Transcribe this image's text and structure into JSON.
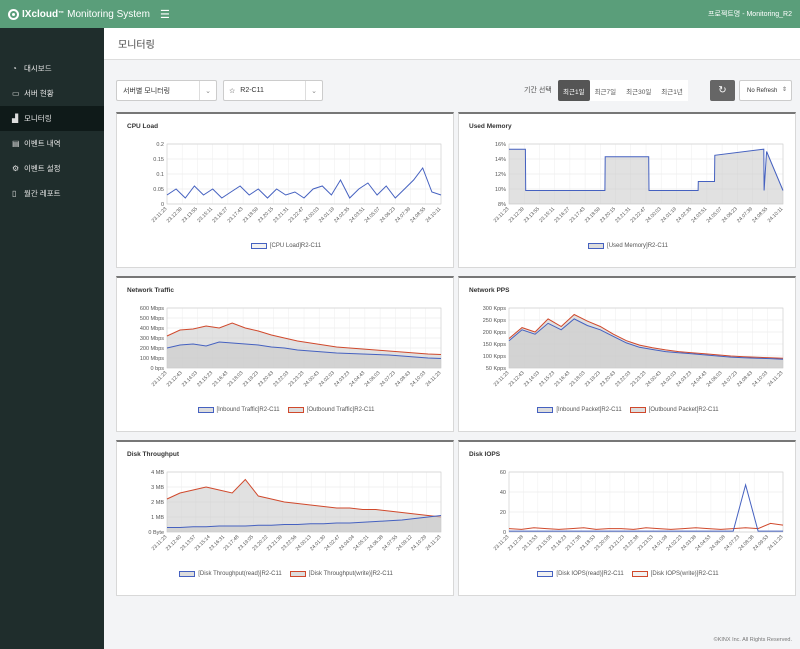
{
  "header": {
    "brand": "IXcloud",
    "trademark": "™",
    "system_name": "Monitoring System",
    "project": "프로젝트명 - Monitoring_R2"
  },
  "sidebar": {
    "items": [
      {
        "label": "대시보드",
        "icon": "gauge-icon"
      },
      {
        "label": "서버 현황",
        "icon": "monitor-icon"
      },
      {
        "label": "모니터링",
        "icon": "bar-chart-icon",
        "active": true
      },
      {
        "label": "이벤트 내역",
        "icon": "list-icon"
      },
      {
        "label": "이벤트 설정",
        "icon": "gear-icon"
      },
      {
        "label": "월간 레포트",
        "icon": "document-icon"
      }
    ]
  },
  "page": {
    "title": "모니터링",
    "view_select": "서버별 모니터링",
    "server_select": "R2-C11",
    "period_label": "기간 선택",
    "periods": [
      "최근1일",
      "최근7일",
      "최근30일",
      "최근1년"
    ],
    "active_period": 0,
    "refresh_select": "No Refresh",
    "footer": "©KINX Inc. All Rights Reserved."
  },
  "colors": {
    "blue": "#4561c0",
    "red": "#d0492c",
    "header": "#5a9e7a",
    "sidebar": "#1f2d2c"
  },
  "chart_data": [
    {
      "type": "line",
      "title": "CPU Load",
      "y_ticks": [
        "0.2",
        "0.15",
        "0.1",
        "0.05",
        "0"
      ],
      "ylim": [
        0,
        0.2
      ],
      "x": [
        "23.11:23",
        "23.12:09",
        "23.12:55",
        "23.13:41",
        "23.14:27",
        "23.15:13",
        "23.15:59",
        "23.16:45",
        "23.17:31",
        "23.18:17",
        "23.19:03",
        "23.19:49",
        "23.20:35",
        "23.21:21",
        "23.22:07",
        "23.22:53",
        "24.00:25",
        "24.01:11",
        "24.01:57",
        "24.02:43",
        "24.03:29",
        "24.04:15",
        "24.05:01",
        "24.05:47",
        "24.06:33",
        "24.07:19",
        "24.08:05",
        "24.08:51",
        "24.09:37",
        "24.10:23",
        "24.11:09"
      ],
      "x_ticks": [
        "23.11:23",
        "23.12:39",
        "23.13:55",
        "23.15:11",
        "23.16:27",
        "23.17:43",
        "23.18:59",
        "23.20:15",
        "23.21:31",
        "23.22:47",
        "24.00:03",
        "24.01:19",
        "24.02:35",
        "24.03:51",
        "24.05:07",
        "24.06:23",
        "24.07:39",
        "24.08:55",
        "24.10:11"
      ],
      "series": [
        {
          "name": "[CPU Load]R2-C11",
          "color": "#4561c0",
          "fill": false,
          "values": [
            0.03,
            0.05,
            0.02,
            0.06,
            0.03,
            0.05,
            0.02,
            0.04,
            0.06,
            0.03,
            0.05,
            0.02,
            0.05,
            0.03,
            0.04,
            0.02,
            0.05,
            0.06,
            0.03,
            0.08,
            0.02,
            0.05,
            0.07,
            0.03,
            0.06,
            0.02,
            0.05,
            0.08,
            0.12,
            0.04,
            0.03
          ]
        }
      ],
      "legend_position": "bottom"
    },
    {
      "type": "area",
      "title": "Used Memory",
      "y_ticks": [
        "16%",
        "14%",
        "12%",
        "10%",
        "8%"
      ],
      "ylim": [
        8,
        16
      ],
      "x_ticks": [
        "23.11:23",
        "23.12:39",
        "23.13:55",
        "23.15:11",
        "23.16:27",
        "23.17:43",
        "23.18:59",
        "23.20:15",
        "23.21:31",
        "23.22:47",
        "24.00:03",
        "24.01:19",
        "24.02:35",
        "24.03:51",
        "24.05:07",
        "24.06:23",
        "24.07:39",
        "24.08:55",
        "24.10:11"
      ],
      "x": [
        0,
        0.06,
        0.061,
        0.35,
        0.351,
        0.51,
        0.511,
        0.69,
        0.691,
        0.75,
        0.751,
        0.93,
        0.931,
        0.94,
        1
      ],
      "series": [
        {
          "name": "[Used Memory]R2-C11",
          "color": "#4561c0",
          "fill": true,
          "values": [
            15.3,
            15.3,
            9.8,
            9.8,
            14.3,
            14.3,
            9.8,
            9.8,
            11.0,
            11.0,
            14.5,
            15.3,
            9.8,
            15.0,
            9.8
          ]
        }
      ],
      "legend_position": "bottom"
    },
    {
      "type": "area",
      "title": "Network Traffic",
      "y_ticks": [
        "600 Mbps",
        "500 Mbps",
        "400 Mbps",
        "300 Mbps",
        "200 Mbps",
        "100 Mbps",
        "0 bps"
      ],
      "ylim": [
        0,
        600
      ],
      "x_ticks": [
        "23.11:23",
        "23.12:43",
        "23.14:03",
        "23.15:23",
        "23.16:43",
        "23.18:03",
        "23.19:23",
        "23.20:43",
        "23.22:03",
        "23.23:23",
        "24.00:43",
        "24.02:03",
        "24.03:23",
        "24.04:43",
        "24.06:03",
        "24.07:23",
        "24.08:43",
        "24.10:03",
        "24.11:23"
      ],
      "series": [
        {
          "name": "[Inbound Traffic]R2-C11",
          "color": "#4561c0",
          "fill": true,
          "values": [
            200,
            230,
            240,
            220,
            260,
            250,
            240,
            230,
            210,
            200,
            180,
            170,
            160,
            150,
            145,
            140,
            135,
            130,
            120,
            110,
            100,
            95
          ]
        },
        {
          "name": "[Outbound Traffic]R2-C11",
          "color": "#d0492c",
          "fill": true,
          "values": [
            320,
            380,
            390,
            420,
            400,
            450,
            400,
            370,
            330,
            300,
            270,
            250,
            230,
            210,
            200,
            190,
            180,
            170,
            160,
            150,
            140,
            135
          ]
        }
      ],
      "legend_position": "bottom"
    },
    {
      "type": "area",
      "title": "Network PPS",
      "y_ticks": [
        "300 Kpps",
        "250 Kpps",
        "200 Kpps",
        "150 Kpps",
        "100 Kpps",
        "50 Kpps"
      ],
      "ylim": [
        25,
        300
      ],
      "x_ticks": [
        "23.11:23",
        "23.12:43",
        "23.14:03",
        "23.15:23",
        "23.16:43",
        "23.18:03",
        "23.19:23",
        "23.20:43",
        "23.22:03",
        "23.23:23",
        "24.00:43",
        "24.02:03",
        "24.03:23",
        "24.04:43",
        "24.06:03",
        "24.07:23",
        "24.08:43",
        "24.10:03",
        "24.11:23"
      ],
      "series": [
        {
          "name": "[Inbound Packet]R2-C11",
          "color": "#4561c0",
          "fill": true,
          "values": [
            150,
            200,
            180,
            230,
            200,
            250,
            220,
            200,
            170,
            140,
            120,
            110,
            100,
            95,
            90,
            85,
            80,
            75,
            72,
            70,
            68,
            65
          ]
        },
        {
          "name": "[Outbound Packet]R2-C11",
          "color": "#d0492c",
          "fill": true,
          "values": [
            160,
            210,
            190,
            250,
            215,
            270,
            240,
            215,
            180,
            150,
            130,
            118,
            108,
            100,
            95,
            90,
            85,
            80,
            77,
            74,
            72,
            70
          ]
        }
      ],
      "legend_position": "bottom"
    },
    {
      "type": "area",
      "title": "Disk Throughput",
      "y_ticks": [
        "4 MB",
        "3 MB",
        "2 MB",
        "1 MB",
        "0 Byte"
      ],
      "ylim": [
        0,
        4
      ],
      "x_ticks": [
        "23.11:23",
        "23.12:40",
        "23.13:57",
        "23.15:14",
        "23.16:31",
        "23.17:48",
        "23.19:05",
        "23.20:22",
        "23.21:39",
        "23.22:56",
        "24.00:13",
        "24.01:30",
        "24.02:47",
        "24.04:04",
        "24.05:21",
        "24.06:38",
        "24.07:55",
        "24.09:12",
        "24.10:29",
        "24.11:23"
      ],
      "series": [
        {
          "name": "[Disk Throughput(read)]R2-C11",
          "color": "#4561c0",
          "fill": true,
          "values": [
            0.3,
            0.3,
            0.35,
            0.35,
            0.4,
            0.4,
            0.4,
            0.45,
            0.45,
            0.5,
            0.5,
            0.55,
            0.55,
            0.6,
            0.6,
            0.65,
            0.7,
            0.75,
            0.8,
            0.9,
            1.0,
            1.1
          ]
        },
        {
          "name": "[Disk Throughput(write)]R2-C11",
          "color": "#d0492c",
          "fill": true,
          "values": [
            2.2,
            2.6,
            2.8,
            3.0,
            2.8,
            2.6,
            3.5,
            2.4,
            2.2,
            2.0,
            1.9,
            1.8,
            1.7,
            1.6,
            1.6,
            1.5,
            1.5,
            1.4,
            1.3,
            1.2,
            1.1,
            1.0
          ]
        }
      ],
      "legend_position": "bottom"
    },
    {
      "type": "line",
      "title": "Disk IOPS",
      "y_ticks": [
        "60",
        "40",
        "20",
        "0"
      ],
      "ylim": [
        0,
        70
      ],
      "x_ticks": [
        "23.11:23",
        "23.12:38",
        "23.13:53",
        "23.15:08",
        "23.16:23",
        "23.17:38",
        "23.18:53",
        "23.20:08",
        "23.21:23",
        "23.22:38",
        "23.23:53",
        "24.01:08",
        "24.02:23",
        "24.03:38",
        "24.04:53",
        "24.06:08",
        "24.07:23",
        "24.08:38",
        "24.09:53",
        "24.11:23"
      ],
      "series": [
        {
          "name": "[Disk IOPS(read)]R2-C11",
          "color": "#4561c0",
          "fill": false,
          "values": [
            1,
            1,
            1,
            1,
            1,
            1,
            1,
            1,
            1,
            1,
            1,
            1,
            1,
            1,
            1,
            1,
            1,
            1,
            1,
            55,
            1,
            1,
            1
          ]
        },
        {
          "name": "[Disk IOPS(write)]R2-C11",
          "color": "#d0492c",
          "fill": false,
          "values": [
            4,
            3,
            5,
            4,
            3,
            4,
            5,
            3,
            4,
            4,
            3,
            5,
            4,
            3,
            4,
            5,
            4,
            3,
            4,
            5,
            4,
            10,
            8
          ]
        }
      ],
      "legend_position": "bottom"
    }
  ]
}
